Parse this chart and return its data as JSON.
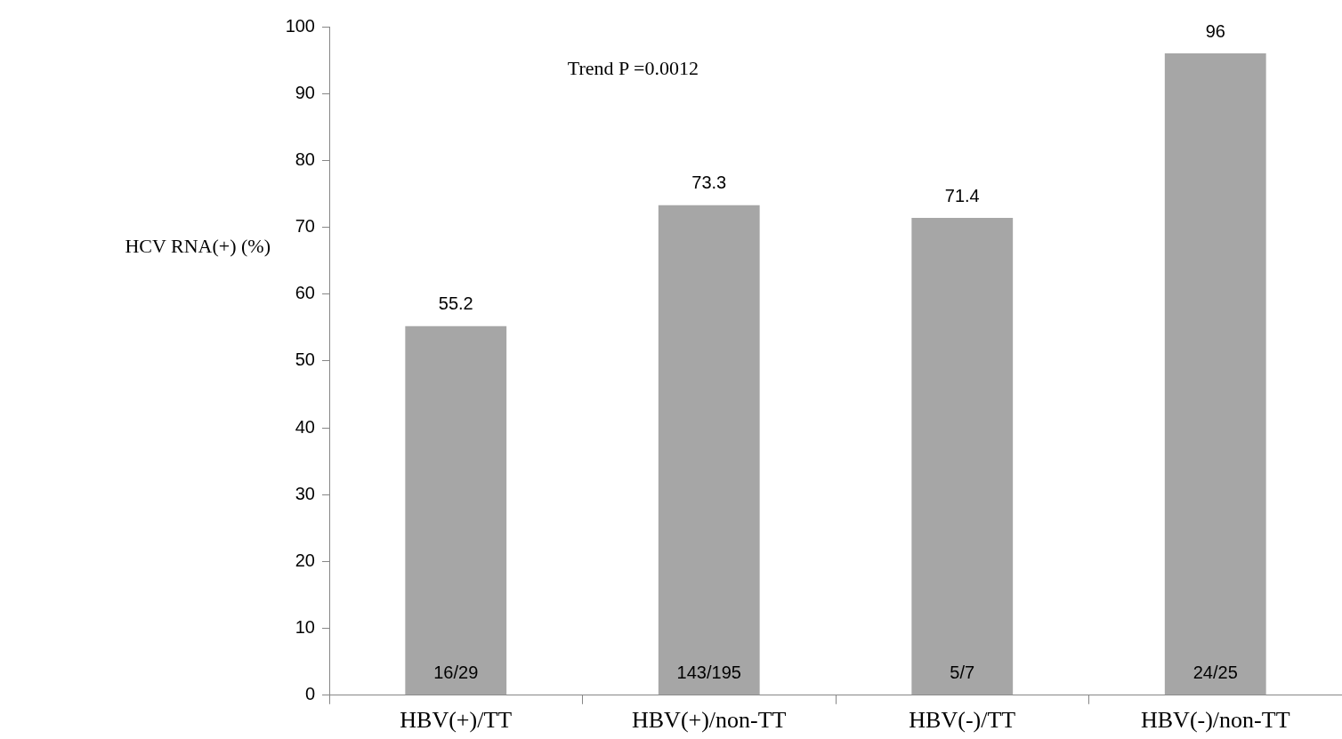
{
  "chart_data": {
    "type": "bar",
    "ylabel": "HCV RNA(+) (%)",
    "categories": [
      "HBV(+)/TT",
      "HBV(+)/non-TT",
      "HBV(-)/TT",
      "HBV(-)/non-TT"
    ],
    "values": [
      55.2,
      73.3,
      71.4,
      96
    ],
    "color": "#a6a6a6",
    "ylim": [
      0,
      100
    ],
    "yticks": [
      0,
      10,
      20,
      30,
      40,
      50,
      60,
      70,
      80,
      90,
      100
    ],
    "grid": false,
    "legend": false,
    "data_labels": true,
    "annotations": [
      "Trend P =0.0012",
      "16/29",
      "143/195",
      "5/7",
      "24/25"
    ]
  }
}
